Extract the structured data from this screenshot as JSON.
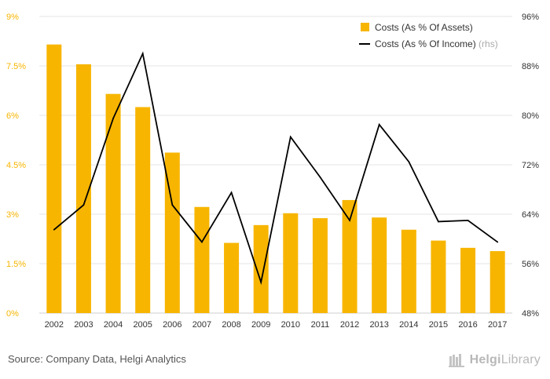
{
  "chart_data": {
    "type": "bar",
    "categories": [
      "2002",
      "2003",
      "2004",
      "2005",
      "2006",
      "2007",
      "2008",
      "2009",
      "2010",
      "2011",
      "2012",
      "2013",
      "2014",
      "2015",
      "2016",
      "2017"
    ],
    "series": [
      {
        "name": "Costs (As % Of Assets)",
        "type": "bar",
        "axis": "left",
        "color": "#f7b500",
        "values": [
          8.15,
          7.55,
          6.65,
          6.25,
          4.87,
          3.22,
          2.13,
          2.67,
          3.03,
          2.88,
          3.43,
          2.9,
          2.53,
          2.2,
          1.98,
          1.88
        ]
      },
      {
        "name": "Costs (As % Of Income)",
        "type": "line",
        "axis": "right",
        "color": "#000000",
        "values": [
          61.5,
          65.5,
          79.5,
          90.0,
          65.5,
          59.5,
          67.5,
          53.0,
          76.5,
          70.0,
          63.0,
          78.5,
          72.5,
          62.8,
          63.0,
          59.5
        ]
      }
    ],
    "y_left": {
      "ylim": [
        0,
        9
      ],
      "ticks": [
        0,
        1.5,
        3,
        4.5,
        6,
        7.5,
        9
      ],
      "tick_labels": [
        "0%",
        "1.5%",
        "3%",
        "4.5%",
        "6%",
        "7.5%",
        "9%"
      ]
    },
    "y_right": {
      "ylim": [
        48,
        96
      ],
      "ticks": [
        48,
        56,
        64,
        72,
        80,
        88,
        96
      ],
      "tick_labels": [
        "48%",
        "56%",
        "64%",
        "72%",
        "80%",
        "88%",
        "96%"
      ]
    },
    "legend": {
      "position": "top-right",
      "items": [
        {
          "label": "Costs (As % Of Assets)",
          "suffix": ""
        },
        {
          "label": "Costs (As % Of Income)",
          "suffix": " (rhs)"
        }
      ]
    },
    "grid": true
  },
  "footer": {
    "source": "Source: Company Data, Helgi Analytics",
    "brand_part1": "Helgi",
    "brand_part2": "Library"
  },
  "colors": {
    "bar": "#f7b500",
    "line": "#000000",
    "left_axis_text": "#f7b500",
    "right_axis_text": "#333333",
    "grid": "#e6e6e6",
    "rhs_suffix": "#aaaaaa"
  }
}
